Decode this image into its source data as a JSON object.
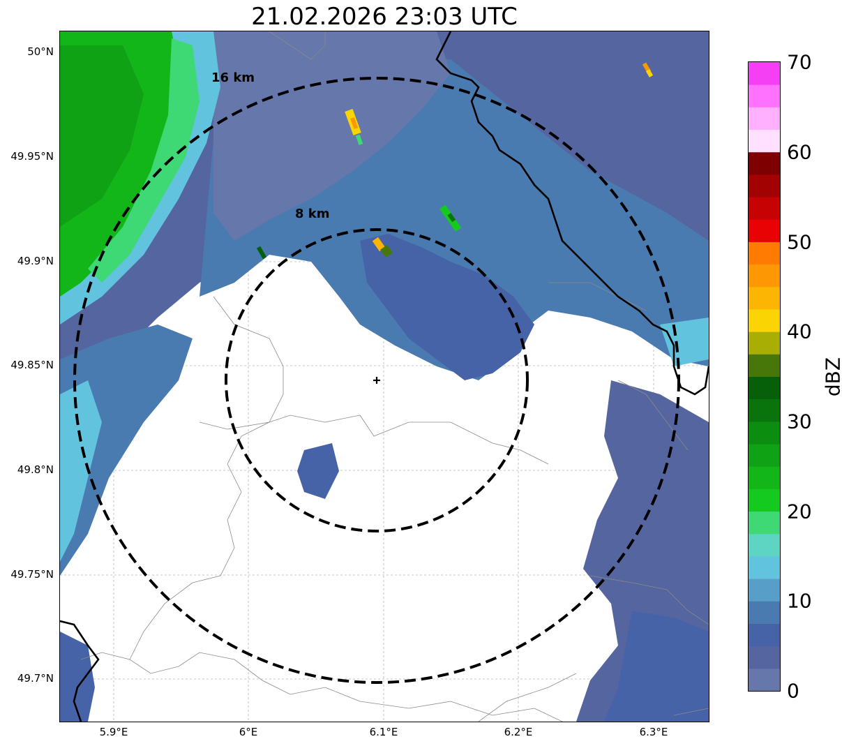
{
  "title": "21.02.2026 23:03 UTC",
  "lat_labels": [
    "50°N",
    "49.95°N",
    "49.9°N",
    "49.85°N",
    "49.8°N",
    "49.75°N",
    "49.7°N"
  ],
  "lon_labels": [
    "5.9°E",
    "6°E",
    "6.1°E",
    "6.2°E",
    "6.3°E"
  ],
  "rings": [
    {
      "label": "16 km",
      "radius_km": 16
    },
    {
      "label": "8 km",
      "radius_km": 8
    }
  ],
  "colorbar": {
    "unit": "dBZ",
    "tick_labels": [
      "0",
      "10",
      "20",
      "30",
      "40",
      "50",
      "60",
      "70"
    ],
    "colors": [
      "#6577ab",
      "#55659f",
      "#4763a8",
      "#4a7bb0",
      "#579fc9",
      "#62c3df",
      "#5ed4c2",
      "#3ed874",
      "#14ca1e",
      "#12b619",
      "#0fa214",
      "#0b8d10",
      "#0a740c",
      "#06600a",
      "#487709",
      "#a9ae05",
      "#fbd503",
      "#fdb504",
      "#fd9704",
      "#ff7b02",
      "#e80203",
      "#c70203",
      "#a20201",
      "#7f0000",
      "#ffe0ff",
      "#ffb1ff",
      "#ff72ff",
      "#f43ff4"
    ]
  },
  "legend_colors": {
    "blue": "#55659f",
    "mid_blue": "#4a7bb0",
    "light_blue": "#62c3df",
    "green": "#12b619",
    "dark_green": "#0a740c",
    "yellow": "#fbd503",
    "orange": "#fd9704"
  }
}
